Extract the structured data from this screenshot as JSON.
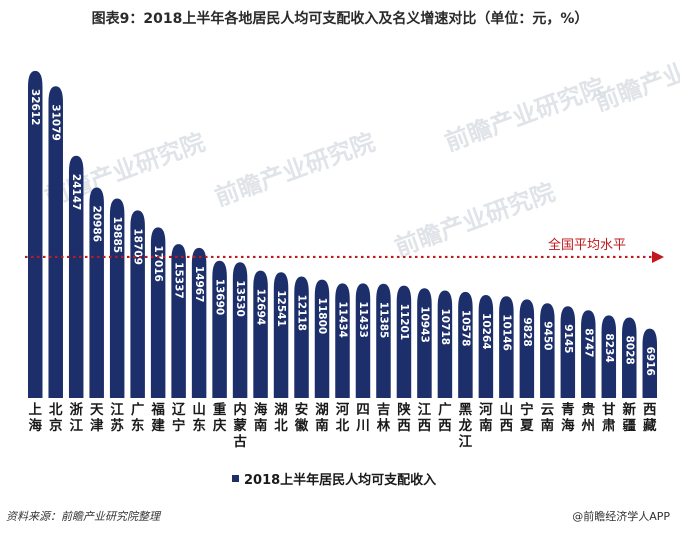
{
  "title": "图表9：2018上半年各地居民人均可支配收入及名义增速对比（单位：元，%）",
  "footer": {
    "source": "资料来源：前瞻产业研究院整理",
    "credit": "@前瞻经济学人APP"
  },
  "watermark": "前瞻产业研究院",
  "colors": {
    "bar": "#1d2f6b",
    "bar_text": "#ffffff",
    "avg_line": "#c0181d",
    "avg_text": "#c0181d"
  },
  "chart_data": {
    "type": "bar",
    "categories": [
      "上海",
      "北京",
      "浙江",
      "天津",
      "江苏",
      "广东",
      "福建",
      "辽宁",
      "山东",
      "重庆",
      "内蒙古",
      "海南",
      "湖北",
      "安徽",
      "湖南",
      "河北",
      "四川",
      "吉林",
      "陕西",
      "江西",
      "广西",
      "黑龙江",
      "河南",
      "山西",
      "宁夏",
      "云南",
      "青海",
      "贵州",
      "甘肃",
      "新疆",
      "西藏"
    ],
    "series": [
      {
        "name": "2018上半年居民人均可支配收入",
        "values": [
          32612,
          31079,
          24147,
          20986,
          19885,
          18709,
          17016,
          15337,
          14967,
          13690,
          13530,
          12694,
          12541,
          12118,
          11800,
          11434,
          11433,
          11385,
          11201,
          10943,
          10718,
          10578,
          10264,
          10146,
          9828,
          9450,
          9145,
          8747,
          8234,
          8028,
          6916
        ]
      }
    ],
    "labels": [
      "32612",
      "31079",
      "24147",
      "20986",
      "19885",
      "18709",
      "17016",
      "15337",
      "14967",
      "13690",
      "13530",
      "12694",
      "12541",
      "12118",
      "11800",
      "11434",
      "11433",
      "11385",
      "11201",
      "10943",
      "10718",
      "10578",
      "10264",
      "10146",
      "9828",
      "9450",
      "9145",
      "8747",
      "8234",
      "8028",
      "6916"
    ],
    "average_line": {
      "label": "全国平均水平",
      "value": 14063
    },
    "ylim": [
      0,
      33500
    ],
    "legend_position": "bottom-center",
    "grid": false
  }
}
